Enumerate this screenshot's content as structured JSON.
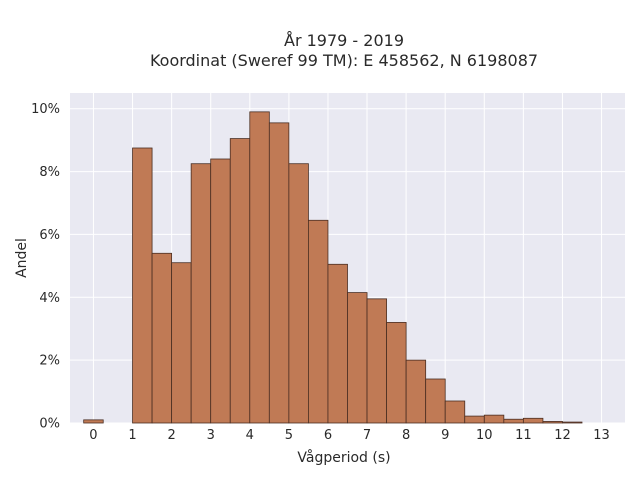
{
  "chart_data": {
    "type": "bar",
    "title": "År 1979 - 2019",
    "subtitle": "Koordinat (Sweref 99 TM): E 458562, N 6198087",
    "xlabel": "Vågperiod (s)",
    "ylabel": "Andel",
    "xlim": [
      -0.6,
      13.6
    ],
    "ylim": [
      0,
      10.5
    ],
    "x_ticks": [
      0,
      1,
      2,
      3,
      4,
      5,
      6,
      7,
      8,
      9,
      10,
      11,
      12,
      13
    ],
    "y_ticks": [
      0,
      2,
      4,
      6,
      8,
      10
    ],
    "y_tick_labels": [
      "0%",
      "2%",
      "4%",
      "6%",
      "8%",
      "10%"
    ],
    "bin_width": 0.5,
    "bin_starts": [
      -0.25,
      1.0,
      1.5,
      2.0,
      2.5,
      3.0,
      3.5,
      4.0,
      4.5,
      5.0,
      5.5,
      6.0,
      6.5,
      7.0,
      7.5,
      8.0,
      8.5,
      9.0,
      9.5,
      10.0,
      10.5,
      11.0,
      11.5,
      12.0
    ],
    "values": [
      0.1,
      8.75,
      5.4,
      5.1,
      8.25,
      8.4,
      9.05,
      9.9,
      9.55,
      8.25,
      6.45,
      5.05,
      4.15,
      3.95,
      3.2,
      2.0,
      1.4,
      0.7,
      0.22,
      0.25,
      0.12,
      0.15,
      0.05,
      0.03
    ],
    "units": "%",
    "grid": true,
    "colors": {
      "bar_fill": "#c07a55",
      "bar_edge": "#4a2e22",
      "plot_background": "#e9e9f2",
      "grid": "#ffffff",
      "text": "#2a2a2a"
    }
  }
}
